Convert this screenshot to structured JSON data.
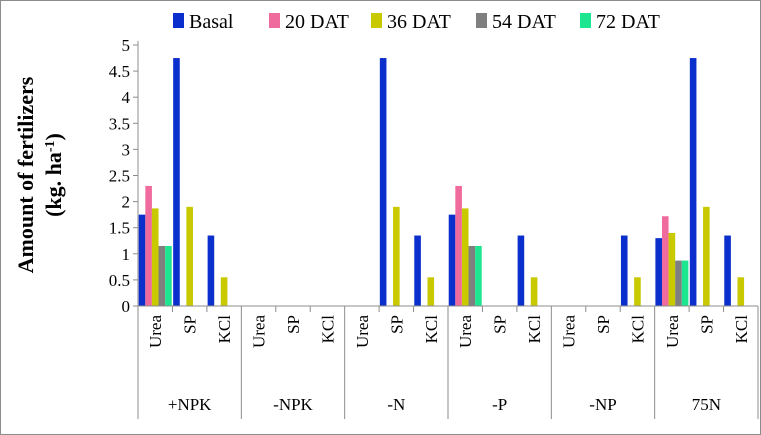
{
  "chart_data": {
    "type": "bar",
    "ylabel": "Amount of fertilizers",
    "ylabel_unit": {
      "prefix": "(kg. ha",
      "superscript": "-1",
      "suffix": ")"
    },
    "ylim": [
      0,
      5
    ],
    "yticks": [
      "0",
      "0.5",
      "1",
      "1.5",
      "2",
      "2.5",
      "3",
      "3.5",
      "4",
      "4.5",
      "5"
    ],
    "legend_position": "top",
    "groups": [
      "+NPK",
      "-NPK",
      "-N",
      "-P",
      "-NP",
      "75N"
    ],
    "subcategories": [
      "Urea",
      "SP",
      "KCl"
    ],
    "series": [
      {
        "name": "Basal",
        "color": "#0b2fcc",
        "values": [
          [
            1.75,
            4.75,
            1.35
          ],
          [
            0,
            0,
            0
          ],
          [
            0,
            4.75,
            1.35
          ],
          [
            1.75,
            0,
            1.35
          ],
          [
            0,
            0,
            1.35
          ],
          [
            1.3,
            4.75,
            1.35
          ]
        ]
      },
      {
        "name": "20 DAT",
        "color": "#f06b9d",
        "values": [
          [
            2.3,
            0,
            0
          ],
          [
            0,
            0,
            0
          ],
          [
            0,
            0,
            0
          ],
          [
            2.3,
            0,
            0
          ],
          [
            0,
            0,
            0
          ],
          [
            1.72,
            0,
            0
          ]
        ]
      },
      {
        "name": "36 DAT",
        "color": "#c9c900",
        "values": [
          [
            1.87,
            1.9,
            0.55
          ],
          [
            0,
            0,
            0
          ],
          [
            0,
            1.9,
            0.55
          ],
          [
            1.87,
            0,
            0.55
          ],
          [
            0,
            0,
            0.55
          ],
          [
            1.4,
            1.9,
            0.55
          ]
        ]
      },
      {
        "name": "54 DAT",
        "color": "#7f7f7f",
        "values": [
          [
            1.15,
            0,
            0
          ],
          [
            0,
            0,
            0
          ],
          [
            0,
            0,
            0
          ],
          [
            1.15,
            0,
            0
          ],
          [
            0,
            0,
            0
          ],
          [
            0.87,
            0,
            0
          ]
        ]
      },
      {
        "name": "72 DAT",
        "color": "#1ee58f",
        "values": [
          [
            1.15,
            0,
            0
          ],
          [
            0,
            0,
            0
          ],
          [
            0,
            0,
            0
          ],
          [
            1.15,
            0,
            0
          ],
          [
            0,
            0,
            0
          ],
          [
            0.87,
            0,
            0
          ]
        ]
      }
    ]
  }
}
